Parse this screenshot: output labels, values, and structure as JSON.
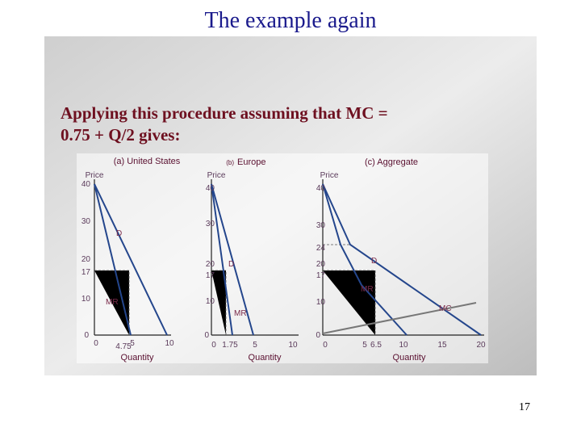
{
  "title": "The example again",
  "heading": [
    "Applying this procedure assuming that MC =",
    "0.75 + Q/2 gives:"
  ],
  "panels": [
    {
      "title": "(a) United States",
      "y_label": "Price",
      "x_label": "Quantity",
      "y_ticks": [
        "40",
        "30",
        "20",
        "17",
        "10",
        "0"
      ],
      "x_ticks": [
        "0",
        "4.75",
        "5",
        "10"
      ],
      "labels": [
        "D",
        "MR"
      ]
    },
    {
      "title_tag": "(b)",
      "title": "Europe",
      "y_label": "Price",
      "x_label": "Quantity",
      "y_ticks": [
        "40",
        "30",
        "20",
        "17",
        "10",
        "0"
      ],
      "x_ticks": [
        "0",
        "1.75",
        "5",
        "10"
      ],
      "labels": [
        "D",
        "MR"
      ]
    },
    {
      "title": "(c) Aggregate",
      "y_label": "Price",
      "x_label": "Quantity",
      "y_ticks": [
        "40",
        "30",
        "24",
        "20",
        "17",
        "10",
        "0"
      ],
      "x_ticks": [
        "0",
        "5",
        "6.5",
        "10",
        "15",
        "20"
      ],
      "labels": [
        "D",
        "MR",
        "MC"
      ]
    }
  ],
  "page_number": "17"
}
